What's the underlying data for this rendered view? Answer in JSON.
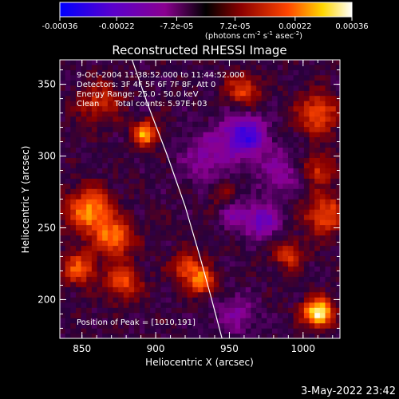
{
  "colorbar": {
    "tick_labels": [
      "-0.00036",
      "-0.00022",
      "-7.2e-05",
      "7.2e-05",
      "0.00022",
      "0.00036"
    ],
    "tick_values": [
      -0.00036,
      -0.00022,
      -7.2e-05,
      7.2e-05,
      0.00022,
      0.00036
    ],
    "range": [
      -0.00036,
      0.00036
    ],
    "units_prefix": "(photons cm",
    "units_exp1": "-2",
    "units_mid": " s",
    "units_exp2": "-1",
    "units_mid2": " asec",
    "units_exp3": "-2",
    "units_suffix": ")",
    "colors": [
      "#0000ff",
      "#5a00cc",
      "#8a0090",
      "#000000",
      "#8b0000",
      "#ff4500",
      "#ffd700",
      "#ffffff"
    ]
  },
  "chart_data": {
    "type": "heatmap",
    "title": "Reconstructed RHESSI Image",
    "xlabel": "Heliocentric X (arcsec)",
    "ylabel": "Heliocentric Y (arcsec)",
    "xlim": [
      835,
      1025
    ],
    "ylim": [
      173,
      367
    ],
    "x_ticks": [
      850,
      900,
      950,
      1000
    ],
    "y_ticks": [
      200,
      250,
      300,
      350
    ],
    "x_tick_labels": [
      "850",
      "900",
      "950",
      "1000"
    ],
    "y_tick_labels": [
      "200",
      "250",
      "300",
      "350"
    ],
    "annotations": [
      "9-Oct-2004 11:38:52.000 to 11:44:52.000",
      "Detectors: 3F 4F 5F 6F 7F 8F, Att 0",
      "Energy Range: 25.0 - 50.0 keV",
      "Clean      Total counts: 5.97E+03"
    ],
    "peak_text": "Position of Peak = [1010,191]",
    "peak": [
      1010,
      191
    ],
    "limb_curve": [
      [
        884,
        367
      ],
      [
        895,
        335
      ],
      [
        908,
        300
      ],
      [
        920,
        265
      ],
      [
        930,
        230
      ],
      [
        938,
        200
      ],
      [
        945,
        173
      ]
    ],
    "sources": [
      {
        "x": 1010,
        "y": 191,
        "amp": 1.0,
        "sigma": 7
      },
      {
        "x": 893,
        "y": 316,
        "amp": 0.75,
        "sigma": 6
      },
      {
        "x": 855,
        "y": 262,
        "amp": 0.7,
        "sigma": 11
      },
      {
        "x": 872,
        "y": 243,
        "amp": 0.6,
        "sigma": 9
      },
      {
        "x": 848,
        "y": 222,
        "amp": 0.55,
        "sigma": 8
      },
      {
        "x": 878,
        "y": 212,
        "amp": 0.5,
        "sigma": 9
      },
      {
        "x": 922,
        "y": 222,
        "amp": 0.5,
        "sigma": 8
      },
      {
        "x": 932,
        "y": 212,
        "amp": 0.6,
        "sigma": 6
      },
      {
        "x": 960,
        "y": 346,
        "amp": 0.5,
        "sigma": 8
      },
      {
        "x": 1010,
        "y": 330,
        "amp": 0.55,
        "sigma": 10
      },
      {
        "x": 1015,
        "y": 260,
        "amp": 0.55,
        "sigma": 10
      },
      {
        "x": 1010,
        "y": 292,
        "amp": 0.45,
        "sigma": 8
      },
      {
        "x": 990,
        "y": 232,
        "amp": 0.45,
        "sigma": 7
      },
      {
        "x": 862,
        "y": 338,
        "amp": 0.4,
        "sigma": 10
      },
      {
        "x": 948,
        "y": 270,
        "amp": 0.35,
        "sigma": 7
      },
      {
        "x": 960,
        "y": 315,
        "amp": -0.75,
        "sigma": 10
      },
      {
        "x": 952,
        "y": 262,
        "amp": -0.45,
        "sigma": 7
      },
      {
        "x": 972,
        "y": 255,
        "amp": -0.55,
        "sigma": 8
      },
      {
        "x": 935,
        "y": 300,
        "amp": -0.35,
        "sigma": 12
      },
      {
        "x": 985,
        "y": 290,
        "amp": -0.3,
        "sigma": 12
      },
      {
        "x": 955,
        "y": 190,
        "amp": -0.3,
        "sigma": 10
      }
    ],
    "grid": false,
    "legend": "none"
  },
  "footer": {
    "timestamp": "3-May-2022 23:42"
  }
}
